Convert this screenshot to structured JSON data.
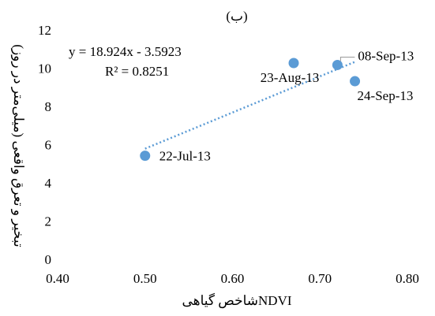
{
  "chart_data": {
    "type": "scatter",
    "title": "(ب)",
    "x_label": "شاخص گیاهیNDVI",
    "y_label": "تبخیر و تعرق واقعی (میلی‌متر در روز)",
    "series": [
      {
        "color": "#5b9bd5",
        "x": [
          0.5,
          0.67,
          0.72,
          0.74
        ],
        "values": [
          5.5,
          10.35,
          10.25,
          9.4
        ],
        "labels": [
          "22-Jul-13",
          "23-Aug-13",
          "08-Sep-13",
          "24-Sep-13"
        ]
      }
    ],
    "trendline": {
      "equation": "y = 18.924x - 3.5923",
      "r2": "R² = 0.8251",
      "slope": 18.924,
      "intercept": -3.5923,
      "style": "dotted"
    },
    "xlim": [
      0.4,
      0.8
    ],
    "xticks": [
      {
        "value": 0.4,
        "label": "0.40"
      },
      {
        "value": 0.5,
        "label": "0.50"
      },
      {
        "value": 0.6,
        "label": "0.60"
      },
      {
        "value": 0.7,
        "label": "0.70"
      },
      {
        "value": 0.8,
        "label": "0.80"
      }
    ],
    "ylim": [
      0,
      12
    ],
    "yticks": [
      0,
      2,
      4,
      6,
      8,
      10,
      12
    ],
    "grid": false
  }
}
